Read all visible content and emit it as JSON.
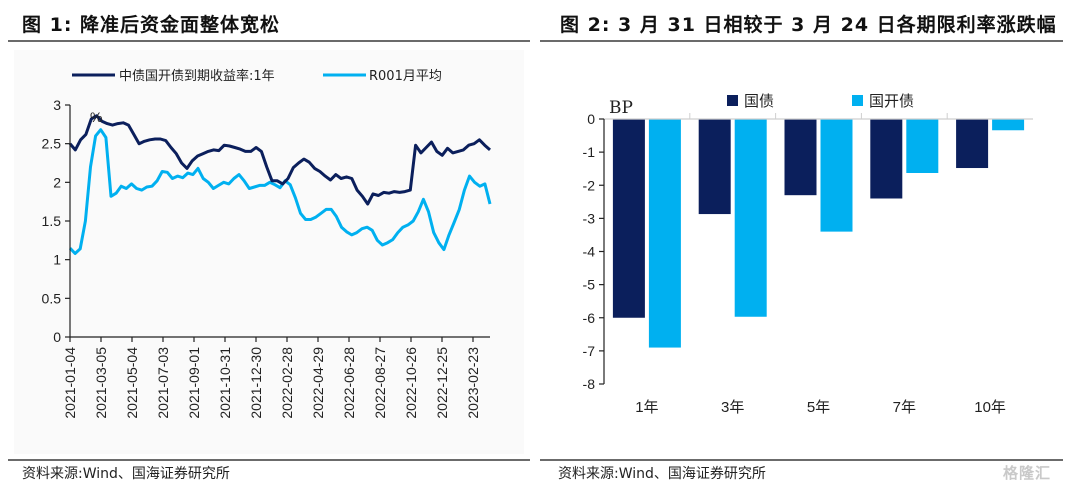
{
  "panels": {
    "left_title": "图 1:  降准后资金面整体宽松",
    "right_title": "图 2: 3 月 31 日相较于 3 月 24 日各期限利率涨跌幅",
    "left_source": "资料来源:Wind、国海证券研究所",
    "right_source": "资料来源:Wind、国海证券研究所",
    "watermark": "格隆汇"
  },
  "colors": {
    "navy": "#0b1f5c",
    "sky": "#00b0f0",
    "axis": "#222222"
  },
  "chart_data": [
    {
      "type": "line",
      "title": "降准后资金面整体宽松",
      "xlabel": "",
      "ylabel": "%",
      "ylim": [
        0,
        3
      ],
      "yticks": [
        "0",
        "0.5",
        "1",
        "1.5",
        "2",
        "2.5",
        "3"
      ],
      "ytick_values": [
        0,
        0.5,
        1,
        1.5,
        2,
        2.5,
        3
      ],
      "x_tick_labels": [
        "2021-01-04",
        "2021-03-05",
        "2021-05-04",
        "2021-07-03",
        "2021-09-01",
        "2021-10-31",
        "2021-12-30",
        "2022-02-28",
        "2022-04-29",
        "2022-06-28",
        "2022-08-27",
        "2022-10-26",
        "2022-12-25",
        "2023-02-23"
      ],
      "unit_label": "%",
      "legend_position": "top",
      "grid": false,
      "x_range": [
        "2021-01-04",
        "2023-03-31"
      ],
      "x_positions_note": "series values sampled evenly across date range (index 0 = 2021-01-04, last = 2023-03-31)",
      "series": [
        {
          "name": "中债国开债到期收益率:1年",
          "color": "#0b1f5c",
          "values": [
            2.5,
            2.42,
            2.55,
            2.62,
            2.82,
            2.86,
            2.79,
            2.76,
            2.74,
            2.76,
            2.77,
            2.74,
            2.62,
            2.5,
            2.53,
            2.55,
            2.56,
            2.56,
            2.54,
            2.45,
            2.37,
            2.25,
            2.18,
            2.28,
            2.34,
            2.37,
            2.4,
            2.42,
            2.41,
            2.48,
            2.47,
            2.45,
            2.43,
            2.4,
            2.4,
            2.45,
            2.4,
            2.2,
            2.02,
            2.02,
            1.98,
            2.05,
            2.19,
            2.25,
            2.3,
            2.26,
            2.18,
            2.14,
            2.08,
            2.03,
            2.1,
            2.05,
            2.07,
            2.05,
            1.9,
            1.82,
            1.72,
            1.85,
            1.83,
            1.87,
            1.86,
            1.88,
            1.87,
            1.88,
            1.9,
            2.48,
            2.38,
            2.45,
            2.52,
            2.4,
            2.35,
            2.44,
            2.38,
            2.4,
            2.42,
            2.48,
            2.5,
            2.55,
            2.48,
            2.42
          ]
        },
        {
          "name": "R001月平均",
          "color": "#00b0f0",
          "values": [
            1.15,
            1.08,
            1.14,
            1.5,
            2.2,
            2.6,
            2.68,
            2.58,
            1.82,
            1.86,
            1.95,
            1.92,
            1.98,
            1.92,
            1.9,
            1.94,
            1.95,
            2.02,
            2.14,
            2.13,
            2.05,
            2.08,
            2.06,
            2.12,
            2.1,
            2.18,
            2.05,
            2.0,
            1.92,
            1.96,
            2.0,
            1.98,
            2.05,
            2.1,
            2.02,
            1.92,
            1.94,
            1.96,
            1.96,
            2.0,
            1.97,
            1.93,
            2.02,
            1.97,
            1.8,
            1.6,
            1.52,
            1.52,
            1.55,
            1.6,
            1.65,
            1.65,
            1.56,
            1.42,
            1.36,
            1.32,
            1.35,
            1.4,
            1.42,
            1.38,
            1.25,
            1.19,
            1.22,
            1.26,
            1.35,
            1.42,
            1.45,
            1.5,
            1.62,
            1.78,
            1.62,
            1.35,
            1.22,
            1.13,
            1.32,
            1.48,
            1.65,
            1.9,
            2.08,
            2.0,
            1.95,
            1.98,
            1.72
          ]
        }
      ]
    },
    {
      "type": "bar",
      "title": "3 月 31 日相较于 3 月 24 日各期限利率涨跌幅",
      "ylabel": "BP",
      "ylim": [
        -8,
        0
      ],
      "yticks": [
        "0",
        "-1",
        "-2",
        "-3",
        "-4",
        "-5",
        "-6",
        "-7",
        "-8"
      ],
      "ytick_values": [
        0,
        -1,
        -2,
        -3,
        -4,
        -5,
        -6,
        -7,
        -8
      ],
      "categories": [
        "1年",
        "3年",
        "5年",
        "7年",
        "10年"
      ],
      "legend_position": "top",
      "grid": false,
      "series": [
        {
          "name": "国债",
          "color": "#0b1f5c",
          "values": [
            -6.0,
            -2.87,
            -2.3,
            -2.4,
            -1.48
          ]
        },
        {
          "name": "国开债",
          "color": "#00b0f0",
          "values": [
            -6.9,
            -5.97,
            -3.4,
            -1.63,
            -0.34
          ]
        }
      ]
    }
  ]
}
